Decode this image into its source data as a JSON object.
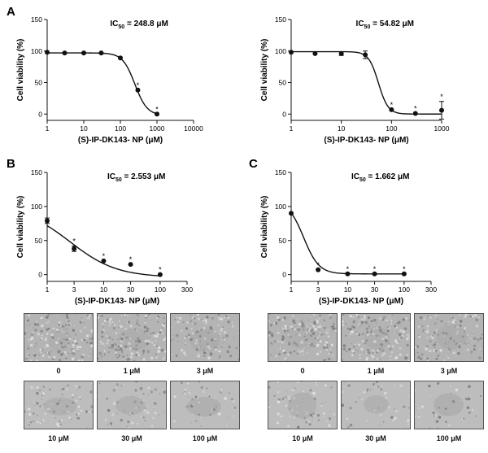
{
  "figure": {
    "panel_letters": [
      "A",
      "B",
      "C"
    ]
  },
  "chart_data": [
    {
      "panel": "A",
      "type": "scatter",
      "annotation": "IC50 = 248.8 μM",
      "ic50": 248.8,
      "xlabel": "(S)-IP-DK143- NP (μM)",
      "ylabel": "Cell viability (%)",
      "xscale": "log",
      "xlim": [
        1,
        10000
      ],
      "ylim": [
        -10,
        150
      ],
      "xticks": [
        1,
        10,
        100,
        1000,
        10000
      ],
      "xtick_labels": [
        "1",
        "10",
        "100",
        "1000",
        "10000"
      ],
      "yticks": [
        0,
        50,
        100,
        150
      ],
      "points": [
        {
          "x": 1,
          "y": 98,
          "err": 0,
          "sig": false
        },
        {
          "x": 3,
          "y": 97,
          "err": 0,
          "sig": false
        },
        {
          "x": 10,
          "y": 97,
          "err": 0,
          "sig": false
        },
        {
          "x": 30,
          "y": 97,
          "err": 0,
          "sig": false
        },
        {
          "x": 100,
          "y": 89,
          "err": 0,
          "sig": false
        },
        {
          "x": 300,
          "y": 38,
          "err": 0,
          "sig": true
        },
        {
          "x": 1000,
          "y": 0,
          "err": 0,
          "sig": true
        }
      ],
      "fit": {
        "top": 97,
        "bottom": -2,
        "ic50": 248.8,
        "hill": 2.6
      }
    },
    {
      "panel": "A",
      "type": "scatter",
      "annotation": "IC50 = 54.82 μM",
      "ic50": 54.82,
      "xlabel": "(S)-IP-DK143- NP (μM)",
      "ylabel": "Cell viability (%)",
      "xscale": "log",
      "xlim": [
        1,
        1000
      ],
      "ylim": [
        -10,
        150
      ],
      "xticks": [
        1,
        10,
        100,
        1000
      ],
      "xtick_labels": [
        "1",
        "10",
        "100",
        "1000"
      ],
      "yticks": [
        0,
        50,
        100,
        150
      ],
      "points": [
        {
          "x": 1,
          "y": 98,
          "err": 0,
          "sig": false
        },
        {
          "x": 3,
          "y": 96,
          "err": 0,
          "sig": false
        },
        {
          "x": 10,
          "y": 96,
          "err": 3,
          "sig": false
        },
        {
          "x": 30,
          "y": 94,
          "err": 6,
          "sig": false
        },
        {
          "x": 100,
          "y": 7,
          "err": 0,
          "sig": true
        },
        {
          "x": 300,
          "y": 1,
          "err": 0,
          "sig": true
        },
        {
          "x": 1000,
          "y": 6,
          "err": 14,
          "sig": true
        }
      ],
      "fit": {
        "top": 99,
        "bottom": 0,
        "ic50": 54.82,
        "hill": 4.5
      }
    },
    {
      "panel": "B",
      "type": "scatter",
      "annotation": "IC50 = 2.553 μM",
      "ic50": 2.553,
      "xlabel": "(S)-IP-DK143- NP (μM)",
      "ylabel": "Cell viability (%)",
      "xscale": "log",
      "xlim": [
        1,
        300
      ],
      "ylim": [
        -10,
        150
      ],
      "xticks": [
        1,
        3,
        10,
        30,
        100,
        300
      ],
      "xtick_labels": [
        "1",
        "3",
        "10",
        "30",
        "100",
        "300"
      ],
      "yticks": [
        0,
        50,
        100,
        150
      ],
      "points": [
        {
          "x": 1,
          "y": 79,
          "err": 4,
          "sig": false
        },
        {
          "x": 3,
          "y": 38,
          "err": 4,
          "sig": true
        },
        {
          "x": 10,
          "y": 20,
          "err": 0,
          "sig": true
        },
        {
          "x": 30,
          "y": 15,
          "err": 0,
          "sig": true
        },
        {
          "x": 100,
          "y": 0,
          "err": 0,
          "sig": true
        }
      ],
      "fit": {
        "top": 100,
        "bottom": -4,
        "ic50": 2.553,
        "hill": 1.05
      }
    },
    {
      "panel": "C",
      "type": "scatter",
      "annotation": "IC50 = 1.662 μM",
      "ic50": 1.662,
      "xlabel": "(S)-IP-DK143- NP (μM)",
      "ylabel": "Cell viability (%)",
      "xscale": "log",
      "xlim": [
        1,
        300
      ],
      "ylim": [
        -10,
        150
      ],
      "xticks": [
        1,
        3,
        10,
        30,
        100,
        300
      ],
      "xtick_labels": [
        "1",
        "3",
        "10",
        "30",
        "100",
        "300"
      ],
      "yticks": [
        0,
        50,
        100,
        150
      ],
      "points": [
        {
          "x": 1,
          "y": 90,
          "err": 0,
          "sig": false
        },
        {
          "x": 3,
          "y": 7,
          "err": 0,
          "sig": true
        },
        {
          "x": 10,
          "y": 1,
          "err": 0,
          "sig": true
        },
        {
          "x": 30,
          "y": 1,
          "err": 0,
          "sig": true
        },
        {
          "x": 100,
          "y": 1,
          "err": 0,
          "sig": true
        }
      ],
      "fit": {
        "top": 108,
        "bottom": 1,
        "ic50": 1.662,
        "hill": 3.2
      }
    }
  ],
  "micrographs": {
    "B": {
      "labels": [
        "0",
        "1 μM",
        "3 μM",
        "10 μM",
        "30 μM",
        "100 μM"
      ]
    },
    "C": {
      "labels": [
        "0",
        "1 μM",
        "3 μM",
        "10 μM",
        "30 μM",
        "100 μM"
      ]
    }
  }
}
